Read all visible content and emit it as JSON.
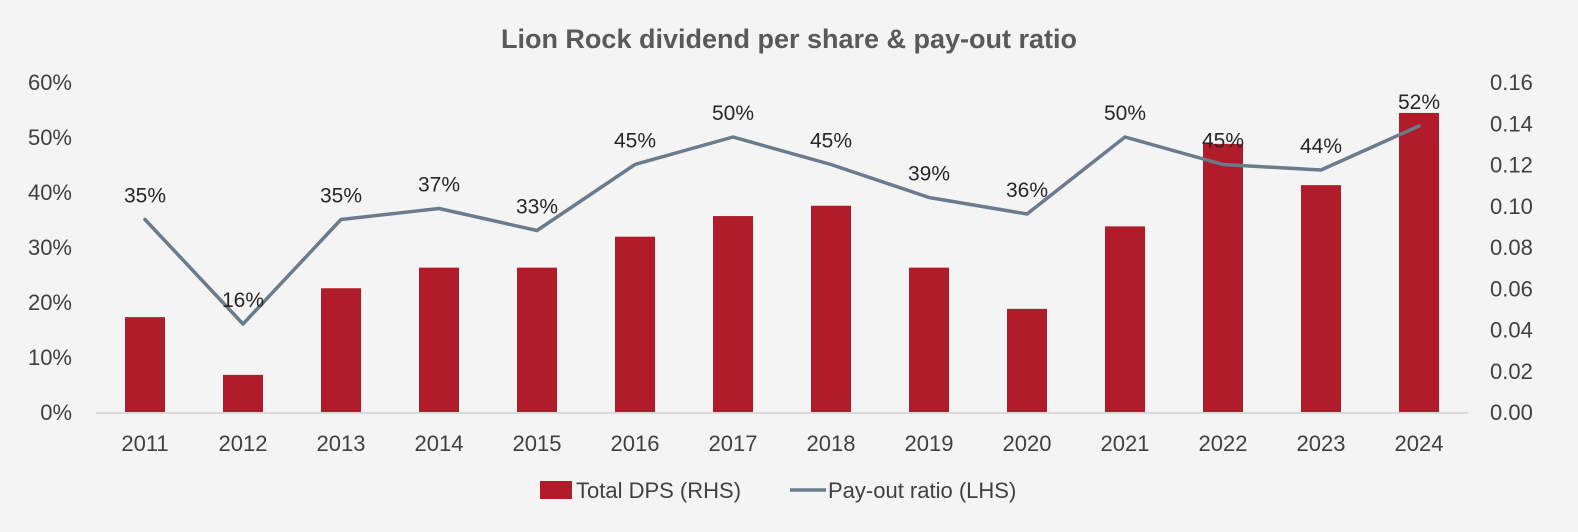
{
  "chart_data": {
    "type": "bar",
    "title": "Lion Rock dividend per share & pay-out ratio",
    "categories": [
      "2011",
      "2012",
      "2013",
      "2014",
      "2015",
      "2016",
      "2017",
      "2018",
      "2019",
      "2020",
      "2021",
      "2022",
      "2023",
      "2024"
    ],
    "series": [
      {
        "name": "Total DPS (RHS)",
        "type": "bar",
        "axis": "right",
        "color": "#b01c2a",
        "values": [
          0.046,
          0.018,
          0.06,
          0.07,
          0.07,
          0.085,
          0.095,
          0.1,
          0.07,
          0.05,
          0.09,
          0.13,
          0.11,
          0.145
        ]
      },
      {
        "name": "Pay-out ratio (LHS)",
        "type": "line",
        "axis": "left",
        "color": "#6b7b8c",
        "values": [
          35,
          16,
          35,
          37,
          33,
          45,
          50,
          45,
          39,
          36,
          50,
          45,
          44,
          52
        ],
        "labels": [
          "35%",
          "16%",
          "35%",
          "37%",
          "33%",
          "45%",
          "50%",
          "45%",
          "39%",
          "36%",
          "50%",
          "45%",
          "44%",
          "52%"
        ]
      }
    ],
    "y_left": {
      "min": 0,
      "max": 60,
      "ticks": [
        "0%",
        "10%",
        "20%",
        "30%",
        "40%",
        "50%",
        "60%"
      ]
    },
    "y_right": {
      "min": 0,
      "max": 0.16,
      "ticks": [
        "0.00",
        "0.02",
        "0.04",
        "0.06",
        "0.08",
        "0.10",
        "0.12",
        "0.14",
        "0.16"
      ]
    },
    "grid": false,
    "legend": {
      "position": "bottom"
    }
  }
}
